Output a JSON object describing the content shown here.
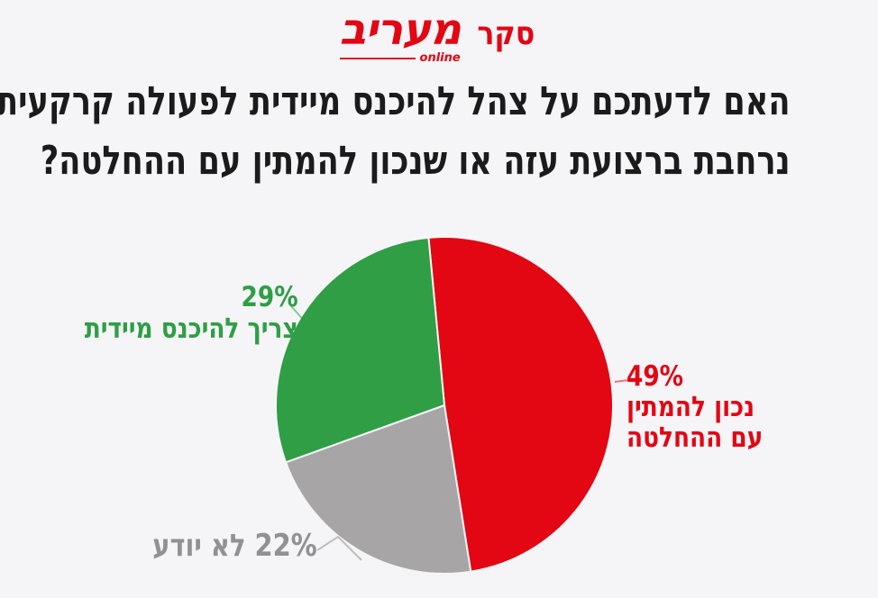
{
  "page": {
    "background": "#f5f5f8"
  },
  "header": {
    "poll_tag": "סקר",
    "brand": {
      "name": "מעריב",
      "sub": "online"
    },
    "brand_color": "#e30613"
  },
  "title": {
    "line1": "האם לדעתכם על צהל להיכנס מיידית לפעולה קרקעית",
    "line2": "נרחבת ברצועת עזה או שנכון להמתין עם ההחלטה?",
    "text_color": "#1b1b1b"
  },
  "chart_data": {
    "type": "pie",
    "title": "האם לדעתכם על צהל להיכנס מיידית לפעולה קרקעית נרחבת ברצועת עזה או שנכון להמתין עם ההחלטה?",
    "unit": "percent",
    "total": 100,
    "start_angle_deg": -5.4,
    "direction": "clockwise",
    "legend_position": "callouts",
    "background": "#f5f5f8",
    "slices": [
      {
        "id": "wait",
        "label": "נכון להמתין עם ההחלטה",
        "value": 49,
        "color": "#e30613",
        "text_color": "#e30613",
        "callout": {
          "pct": "49%",
          "line1": "נכון להמתין",
          "line2": "עם ההחלטה"
        }
      },
      {
        "id": "dont-know",
        "label": "לא יודע",
        "value": 22,
        "color": "#a7a5a5",
        "text_color": "#909095",
        "callout": {
          "text": "22% לא יודע"
        }
      },
      {
        "id": "enter-now",
        "label": "צריך להיכנס מיידית",
        "value": 29,
        "color": "#2f9e45",
        "text_color": "#2f9e45",
        "callout": {
          "pct": "29%",
          "text": "צריך להיכנס מיידית"
        }
      }
    ]
  }
}
